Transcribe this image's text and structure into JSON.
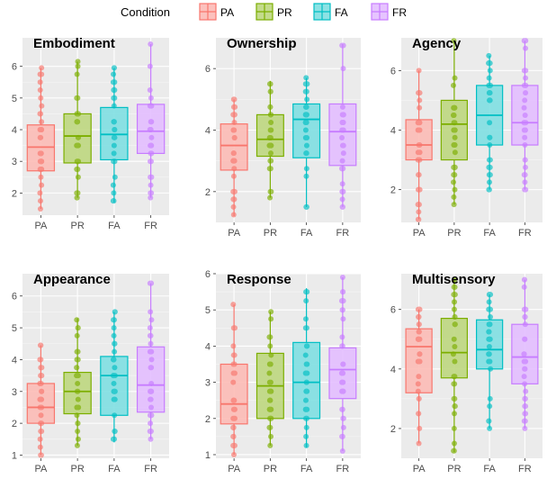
{
  "legend": {
    "title": "Condition",
    "placement": "top-center",
    "items": [
      {
        "label": "PA",
        "color": "#F8766D"
      },
      {
        "label": "PR",
        "color": "#7CAE00"
      },
      {
        "label": "FA",
        "color": "#00BFC4"
      },
      {
        "label": "FR",
        "color": "#C77CFF"
      }
    ]
  },
  "chart_data": [
    {
      "type": "box",
      "title": "Embodiment",
      "categories": [
        "PA",
        "PR",
        "FA",
        "FR"
      ],
      "ylim": [
        1.3,
        6.9
      ],
      "yticks": [
        2,
        3,
        4,
        5,
        6
      ],
      "grid": true,
      "boxes": [
        {
          "name": "PA",
          "min": 1.5,
          "q1": 2.7,
          "median": 3.45,
          "q3": 4.15,
          "max": 5.95
        },
        {
          "name": "PR",
          "min": 1.85,
          "q1": 2.95,
          "median": 3.8,
          "q3": 4.5,
          "max": 6.15
        },
        {
          "name": "FA",
          "min": 1.7,
          "q1": 3.05,
          "median": 3.85,
          "q3": 4.7,
          "max": 5.95
        },
        {
          "name": "FR",
          "min": 1.85,
          "q1": 3.25,
          "median": 3.95,
          "q3": 4.8,
          "max": 6.7
        }
      ]
    },
    {
      "type": "box",
      "title": "Ownership",
      "categories": [
        "PA",
        "PR",
        "FA",
        "FR"
      ],
      "ylim": [
        1.0,
        7.0
      ],
      "yticks": [
        2,
        4,
        6
      ],
      "grid": true,
      "boxes": [
        {
          "name": "PA",
          "min": 1.2,
          "q1": 2.7,
          "median": 3.5,
          "q3": 4.2,
          "max": 5.0
        },
        {
          "name": "PR",
          "min": 1.8,
          "q1": 3.15,
          "median": 3.7,
          "q3": 4.5,
          "max": 5.6
        },
        {
          "name": "FA",
          "min": 1.5,
          "q1": 3.1,
          "median": 4.35,
          "q3": 4.85,
          "max": 5.7
        },
        {
          "name": "FR",
          "min": 1.5,
          "q1": 2.85,
          "median": 3.95,
          "q3": 4.85,
          "max": 6.8
        }
      ]
    },
    {
      "type": "box",
      "title": "Agency",
      "categories": [
        "PA",
        "PR",
        "FA",
        "FR"
      ],
      "ylim": [
        0.9,
        7.1
      ],
      "yticks": [
        2,
        4,
        6
      ],
      "grid": true,
      "boxes": [
        {
          "name": "PA",
          "min": 1.0,
          "q1": 3.0,
          "median": 3.5,
          "q3": 4.35,
          "max": 6.0
        },
        {
          "name": "PR",
          "min": 1.5,
          "q1": 3.0,
          "median": 4.2,
          "q3": 5.0,
          "max": 7.0
        },
        {
          "name": "FA",
          "min": 2.0,
          "q1": 3.5,
          "median": 4.5,
          "q3": 5.5,
          "max": 6.5
        },
        {
          "name": "FR",
          "min": 2.0,
          "q1": 3.5,
          "median": 4.25,
          "q3": 5.5,
          "max": 7.0
        }
      ]
    },
    {
      "type": "box",
      "title": "Appearance",
      "categories": [
        "PA",
        "PR",
        "FA",
        "FR"
      ],
      "ylim": [
        0.9,
        6.7
      ],
      "yticks": [
        1,
        2,
        3,
        4,
        5,
        6
      ],
      "grid": true,
      "boxes": [
        {
          "name": "PA",
          "min": 1.0,
          "q1": 2.0,
          "median": 2.5,
          "q3": 3.25,
          "max": 4.45
        },
        {
          "name": "PR",
          "min": 1.3,
          "q1": 2.3,
          "median": 3.0,
          "q3": 3.6,
          "max": 5.3
        },
        {
          "name": "FA",
          "min": 1.4,
          "q1": 2.25,
          "median": 3.5,
          "q3": 4.1,
          "max": 5.5
        },
        {
          "name": "FR",
          "min": 1.5,
          "q1": 2.35,
          "median": 3.2,
          "q3": 4.4,
          "max": 6.4
        }
      ]
    },
    {
      "type": "box",
      "title": "Response",
      "categories": [
        "PA",
        "PR",
        "FA",
        "FR"
      ],
      "ylim": [
        0.9,
        6.0
      ],
      "yticks": [
        1,
        2,
        3,
        4,
        5,
        6
      ],
      "grid": true,
      "boxes": [
        {
          "name": "PA",
          "min": 1.0,
          "q1": 1.85,
          "median": 2.4,
          "q3": 3.5,
          "max": 5.15
        },
        {
          "name": "PR",
          "min": 1.25,
          "q1": 2.0,
          "median": 2.9,
          "q3": 3.8,
          "max": 4.95
        },
        {
          "name": "FA",
          "min": 1.2,
          "q1": 2.0,
          "median": 3.0,
          "q3": 4.1,
          "max": 5.6
        },
        {
          "name": "FR",
          "min": 1.1,
          "q1": 2.55,
          "median": 3.35,
          "q3": 3.95,
          "max": 5.9
        }
      ]
    },
    {
      "type": "box",
      "title": "Multisensory",
      "categories": [
        "PA",
        "PR",
        "FA",
        "FR"
      ],
      "ylim": [
        1.0,
        7.2
      ],
      "yticks": [
        2,
        4,
        6
      ],
      "grid": true,
      "boxes": [
        {
          "name": "PA",
          "min": 1.5,
          "q1": 3.2,
          "median": 4.75,
          "q3": 5.35,
          "max": 6.0
        },
        {
          "name": "PR",
          "min": 1.2,
          "q1": 3.7,
          "median": 4.55,
          "q3": 5.7,
          "max": 7.0
        },
        {
          "name": "FA",
          "min": 2.0,
          "q1": 4.0,
          "median": 4.65,
          "q3": 5.65,
          "max": 6.5
        },
        {
          "name": "FR",
          "min": 2.0,
          "q1": 3.5,
          "median": 4.4,
          "q3": 5.5,
          "max": 7.0
        }
      ]
    }
  ]
}
